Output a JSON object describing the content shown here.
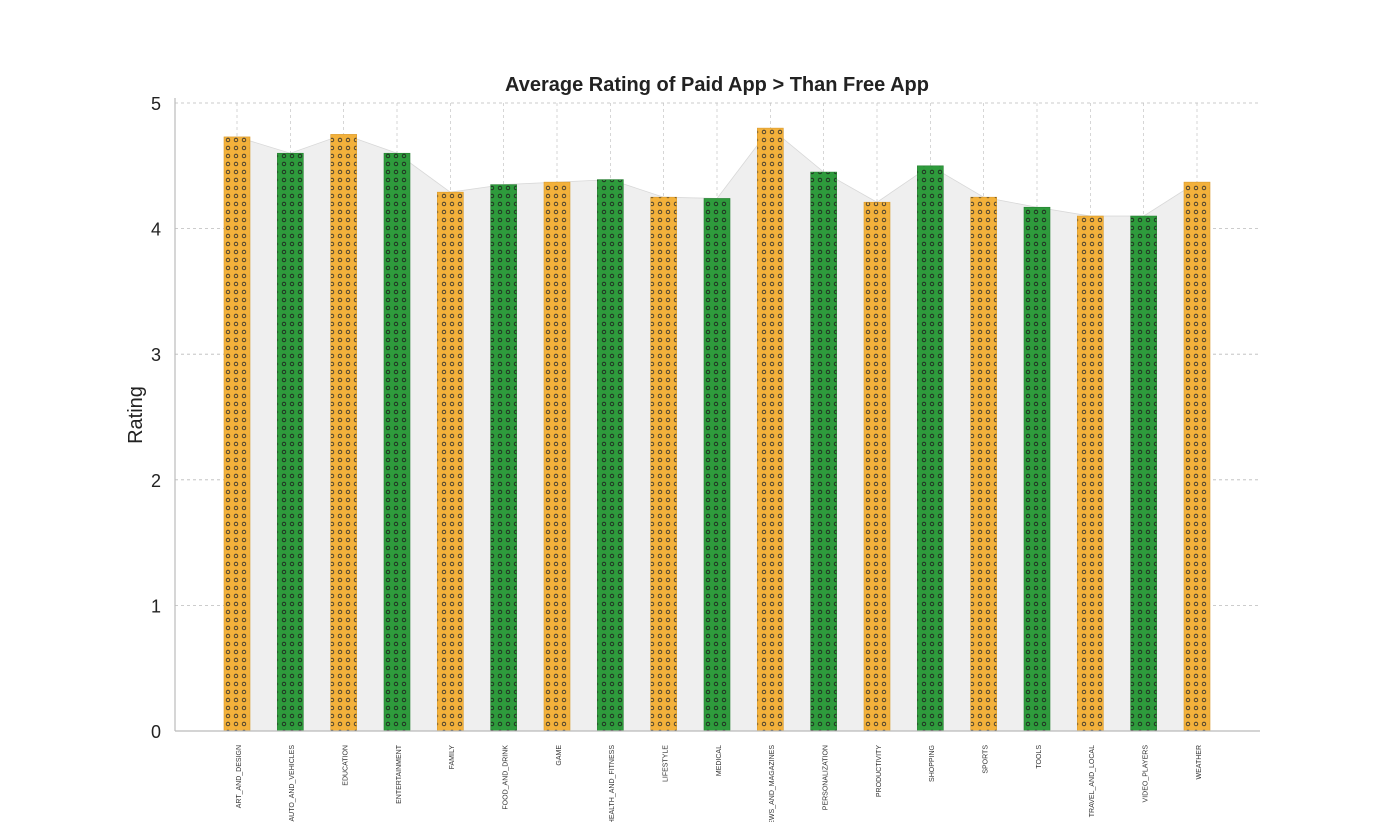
{
  "chart_data": {
    "type": "bar",
    "title": "Average Rating of Paid App > Than Free App",
    "xlabel": "",
    "ylabel": "Rating",
    "ylim": [
      0,
      5
    ],
    "yticks": [
      "0",
      "1",
      "2",
      "3",
      "4",
      "5"
    ],
    "grid": true,
    "legend": "none",
    "categories": [
      "ART_AND_DESIGN",
      "AUTO_AND_VEHICLES",
      "EDUCATION",
      "ENTERTAINMENT",
      "FAMILY",
      "FOOD_AND_DRINK",
      "GAME",
      "HEALTH_AND_FITNESS",
      "LIFESTYLE",
      "MEDICAL",
      "NEWS_AND_MAGAZINES",
      "PERSONALIZATION",
      "PRODUCTIVITY",
      "SHOPPING",
      "SPORTS",
      "TOOLS",
      "TRAVEL_AND_LOCAL",
      "VIDEO_PLAYERS",
      "WEATHER"
    ],
    "values": [
      4.73,
      4.6,
      4.75,
      4.6,
      4.29,
      4.35,
      4.37,
      4.39,
      4.25,
      4.24,
      4.8,
      4.45,
      4.21,
      4.5,
      4.25,
      4.17,
      4.1,
      4.1,
      4.37
    ],
    "colors": {
      "orange": "#f3b13b",
      "green": "#2e9b3c",
      "area_fill": "#efefef",
      "grid": "#bbbbbb",
      "axis": "#bbbbbb"
    },
    "bar_pattern": "dotted hatch",
    "color_sequence": [
      "orange",
      "green"
    ]
  }
}
